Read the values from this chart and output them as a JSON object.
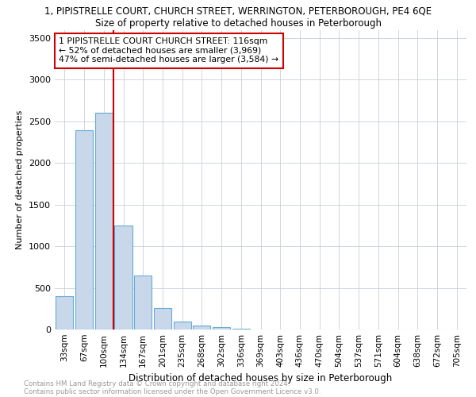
{
  "title1": "1, PIPISTRELLE COURT, CHURCH STREET, WERRINGTON, PETERBOROUGH, PE4 6QE",
  "title2": "Size of property relative to detached houses in Peterborough",
  "xlabel": "Distribution of detached houses by size in Peterborough",
  "ylabel": "Number of detached properties",
  "categories": [
    "33sqm",
    "67sqm",
    "100sqm",
    "134sqm",
    "167sqm",
    "201sqm",
    "235sqm",
    "268sqm",
    "302sqm",
    "336sqm",
    "369sqm",
    "403sqm",
    "436sqm",
    "470sqm",
    "504sqm",
    "537sqm",
    "571sqm",
    "604sqm",
    "638sqm",
    "672sqm",
    "705sqm"
  ],
  "values": [
    400,
    2390,
    2600,
    1250,
    650,
    260,
    100,
    50,
    30,
    5,
    3,
    2,
    1,
    0,
    0,
    0,
    0,
    0,
    0,
    0,
    0
  ],
  "bar_color": "#c8d8ea",
  "bar_edge_color": "#6aaad4",
  "vline_pos": 2.5,
  "vline_color": "#cc0000",
  "annotation_line1": "1 PIPISTRELLE COURT CHURCH STREET: 116sqm",
  "annotation_line2": "← 52% of detached houses are smaller (3,969)",
  "annotation_line3": "47% of semi-detached houses are larger (3,584) →",
  "annotation_box_facecolor": "#ffffff",
  "annotation_box_edgecolor": "#cc0000",
  "ylim": [
    0,
    3600
  ],
  "yticks": [
    0,
    500,
    1000,
    1500,
    2000,
    2500,
    3000,
    3500
  ],
  "background_color": "#ffffff",
  "grid_color": "#c8d0d8",
  "footnote1": "Contains HM Land Registry data © Crown copyright and database right 2024.",
  "footnote2": "Contains public sector information licensed under the Open Government Licence v3.0."
}
